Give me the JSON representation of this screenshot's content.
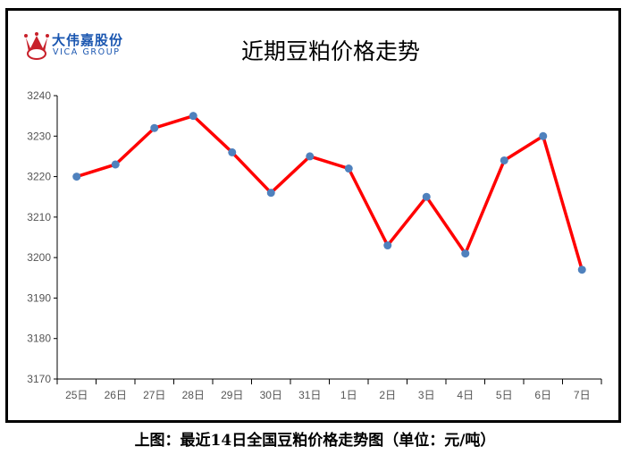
{
  "logo": {
    "name_cn": "大伟嘉股份",
    "name_en": "VICA GROUP"
  },
  "caption": "上图：最近14日全国豆粕价格走势图（单位：元/吨）",
  "chart_data": {
    "type": "line",
    "title": "近期豆粕价格走势",
    "categories": [
      "25日",
      "26日",
      "27日",
      "28日",
      "29日",
      "30日",
      "31日",
      "1日",
      "2日",
      "3日",
      "4日",
      "5日",
      "6日",
      "7日"
    ],
    "series": [
      {
        "name": "豆粕价格",
        "values": [
          3220,
          3223,
          3232,
          3235,
          3226,
          3216,
          3225,
          3222,
          3203,
          3215,
          3201,
          3224,
          3230,
          3197
        ]
      }
    ],
    "ylim": [
      3170,
      3240
    ],
    "yticks": [
      3170,
      3180,
      3190,
      3200,
      3210,
      3220,
      3230,
      3240
    ],
    "xlabel": "",
    "ylabel": "",
    "grid": false,
    "colors": {
      "line": "#ff0000",
      "marker": "#4f81bd"
    }
  }
}
